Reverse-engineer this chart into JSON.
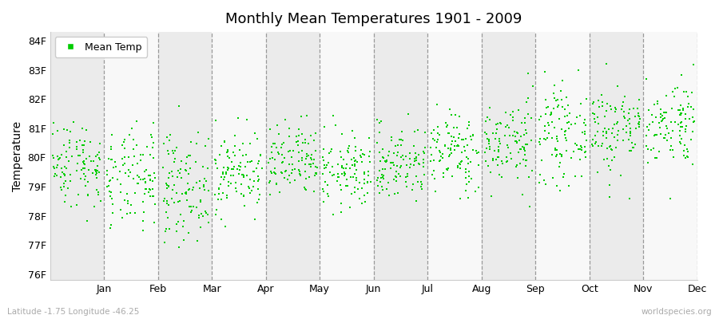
{
  "title": "Monthly Mean Temperatures 1901 - 2009",
  "ylabel": "Temperature",
  "xlabel_months": [
    "Jan",
    "Feb",
    "Mar",
    "Apr",
    "May",
    "Jun",
    "Jul",
    "Aug",
    "Sep",
    "Oct",
    "Nov",
    "Dec"
  ],
  "ytick_labels": [
    "76F",
    "77F",
    "78F",
    "79F",
    "80F",
    "81F",
    "82F",
    "83F",
    "84F"
  ],
  "ytick_values": [
    76,
    77,
    78,
    79,
    80,
    81,
    82,
    83,
    84
  ],
  "ylim": [
    75.8,
    84.3
  ],
  "dot_color": "#00cc00",
  "dot_size": 3,
  "legend_label": "Mean Temp",
  "subtitle_left": "Latitude -1.75 Longitude -46.25",
  "subtitle_right": "worldspecies.org",
  "stripe_colors": [
    "#ebebeb",
    "#f8f8f8"
  ],
  "n_years": 109,
  "monthly_means": [
    79.8,
    79.2,
    79.0,
    79.5,
    79.8,
    79.5,
    79.8,
    80.2,
    80.5,
    80.8,
    81.0,
    81.2
  ],
  "monthly_stds": [
    0.75,
    0.85,
    0.9,
    0.7,
    0.65,
    0.65,
    0.65,
    0.7,
    0.75,
    0.8,
    0.8,
    0.75
  ],
  "random_seed": 42
}
